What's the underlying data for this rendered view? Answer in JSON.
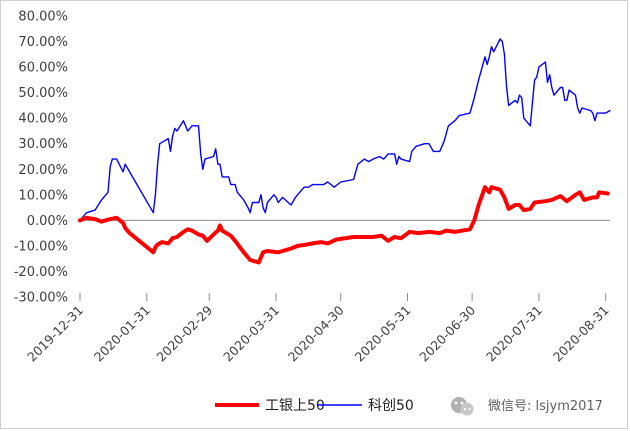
{
  "chart_data": {
    "type": "line",
    "title": "",
    "xlabel": "",
    "ylabel": "",
    "ylim": [
      -30,
      80
    ],
    "yticks": [
      80,
      70,
      60,
      50,
      40,
      30,
      20,
      10,
      0,
      -10,
      -20,
      -30
    ],
    "ytick_labels": [
      "80.00%",
      "70.00%",
      "60.00%",
      "50.00%",
      "40.00%",
      "30.00%",
      "20.00%",
      "10.00%",
      "0.00%",
      "-10.00%",
      "-20.00%",
      "-30.00%"
    ],
    "xlim": [
      "2019-12-31",
      "2020-09-02"
    ],
    "xtick_dates": [
      "2019-12-31",
      "2020-01-31",
      "2020-02-29",
      "2020-03-31",
      "2020-04-30",
      "2020-05-31",
      "2020-06-30",
      "2020-07-31",
      "2020-08-31"
    ],
    "xtick_labels": [
      "2019-12-31",
      "2020-01-31",
      "2020-02-29",
      "2020-03-31",
      "2020-04-30",
      "2020-05-31",
      "2020-06-30",
      "2020-07-31",
      "2020-08-31"
    ],
    "legend_position": "bottom",
    "grid": false,
    "series": [
      {
        "name": "工银上50",
        "color": "#ff0000",
        "points": [
          [
            "2019-12-31",
            0
          ],
          [
            "2020-01-03",
            1
          ],
          [
            "2020-01-07",
            0.5
          ],
          [
            "2020-01-10",
            -0.5
          ],
          [
            "2020-01-14",
            0.5
          ],
          [
            "2020-01-17",
            1
          ],
          [
            "2020-01-20",
            -1
          ],
          [
            "2020-01-21",
            -3
          ],
          [
            "2020-01-23",
            -5
          ],
          [
            "2020-02-03",
            -12.5
          ],
          [
            "2020-02-04",
            -10.5
          ],
          [
            "2020-02-05",
            -9.5
          ],
          [
            "2020-02-07",
            -8.5
          ],
          [
            "2020-02-10",
            -9
          ],
          [
            "2020-02-12",
            -7
          ],
          [
            "2020-02-14",
            -6.5
          ],
          [
            "2020-02-17",
            -4.5
          ],
          [
            "2020-02-19",
            -3.5
          ],
          [
            "2020-02-21",
            -4
          ],
          [
            "2020-02-24",
            -5.5
          ],
          [
            "2020-02-26",
            -6
          ],
          [
            "2020-02-28",
            -8
          ],
          [
            "2020-03-02",
            -5.5
          ],
          [
            "2020-03-04",
            -4
          ],
          [
            "2020-03-05",
            -2
          ],
          [
            "2020-03-06",
            -4
          ],
          [
            "2020-03-10",
            -6
          ],
          [
            "2020-03-12",
            -8
          ],
          [
            "2020-03-16",
            -12.5
          ],
          [
            "2020-03-19",
            -15.5
          ],
          [
            "2020-03-23",
            -16.5
          ],
          [
            "2020-03-25",
            -12.5
          ],
          [
            "2020-03-27",
            -12
          ],
          [
            "2020-04-01",
            -12.5
          ],
          [
            "2020-04-07",
            -11
          ],
          [
            "2020-04-10",
            -10
          ],
          [
            "2020-04-14",
            -9.5
          ],
          [
            "2020-04-17",
            -9
          ],
          [
            "2020-04-21",
            -8.5
          ],
          [
            "2020-04-24",
            -9
          ],
          [
            "2020-04-28",
            -7.5
          ],
          [
            "2020-05-06",
            -6.5
          ],
          [
            "2020-05-12",
            -6.5
          ],
          [
            "2020-05-15",
            -6.5
          ],
          [
            "2020-05-19",
            -6
          ],
          [
            "2020-05-22",
            -8
          ],
          [
            "2020-05-25",
            -6.5
          ],
          [
            "2020-05-28",
            -7
          ],
          [
            "2020-06-01",
            -4.5
          ],
          [
            "2020-06-05",
            -5
          ],
          [
            "2020-06-10",
            -4.5
          ],
          [
            "2020-06-15",
            -5
          ],
          [
            "2020-06-18",
            -4
          ],
          [
            "2020-06-22",
            -4.5
          ],
          [
            "2020-06-29",
            -3.5
          ],
          [
            "2020-07-01",
            0
          ],
          [
            "2020-07-03",
            6
          ],
          [
            "2020-07-06",
            13
          ],
          [
            "2020-07-08",
            11
          ],
          [
            "2020-07-09",
            13
          ],
          [
            "2020-07-13",
            12
          ],
          [
            "2020-07-15",
            9
          ],
          [
            "2020-07-17",
            4.5
          ],
          [
            "2020-07-20",
            6
          ],
          [
            "2020-07-22",
            6
          ],
          [
            "2020-07-24",
            4
          ],
          [
            "2020-07-27",
            4.5
          ],
          [
            "2020-07-29",
            7
          ],
          [
            "2020-08-03",
            7.5
          ],
          [
            "2020-08-06",
            8
          ],
          [
            "2020-08-10",
            9.5
          ],
          [
            "2020-08-13",
            7.5
          ],
          [
            "2020-08-17",
            10
          ],
          [
            "2020-08-19",
            11
          ],
          [
            "2020-08-21",
            8
          ],
          [
            "2020-08-25",
            9
          ],
          [
            "2020-08-27",
            9
          ],
          [
            "2020-08-28",
            11
          ],
          [
            "2020-09-01",
            10.5
          ]
        ]
      },
      {
        "name": "科创50",
        "color": "#0000ff",
        "points": [
          [
            "2019-12-31",
            0
          ],
          [
            "2020-01-03",
            3
          ],
          [
            "2020-01-07",
            4
          ],
          [
            "2020-01-10",
            8
          ],
          [
            "2020-01-13",
            11
          ],
          [
            "2020-01-14",
            21
          ],
          [
            "2020-01-15",
            24
          ],
          [
            "2020-01-17",
            24
          ],
          [
            "2020-01-20",
            19
          ],
          [
            "2020-01-21",
            22
          ],
          [
            "2020-02-03",
            3
          ],
          [
            "2020-02-04",
            10
          ],
          [
            "2020-02-05",
            22
          ],
          [
            "2020-02-06",
            30
          ],
          [
            "2020-02-10",
            32
          ],
          [
            "2020-02-11",
            27
          ],
          [
            "2020-02-12",
            33
          ],
          [
            "2020-02-13",
            36
          ],
          [
            "2020-02-14",
            35
          ],
          [
            "2020-02-17",
            39
          ],
          [
            "2020-02-18",
            37
          ],
          [
            "2020-02-19",
            35
          ],
          [
            "2020-02-20",
            36
          ],
          [
            "2020-02-21",
            37
          ],
          [
            "2020-02-24",
            37
          ],
          [
            "2020-02-25",
            26
          ],
          [
            "2020-02-26",
            20
          ],
          [
            "2020-02-27",
            24
          ],
          [
            "2020-03-02",
            25
          ],
          [
            "2020-03-03",
            28
          ],
          [
            "2020-03-04",
            22
          ],
          [
            "2020-03-05",
            22
          ],
          [
            "2020-03-06",
            17
          ],
          [
            "2020-03-09",
            17
          ],
          [
            "2020-03-10",
            14
          ],
          [
            "2020-03-12",
            14
          ],
          [
            "2020-03-13",
            11
          ],
          [
            "2020-03-16",
            8
          ],
          [
            "2020-03-18",
            5
          ],
          [
            "2020-03-19",
            3
          ],
          [
            "2020-03-20",
            7
          ],
          [
            "2020-03-23",
            7
          ],
          [
            "2020-03-24",
            10
          ],
          [
            "2020-03-25",
            5
          ],
          [
            "2020-03-26",
            3
          ],
          [
            "2020-03-27",
            7
          ],
          [
            "2020-03-30",
            10
          ],
          [
            "2020-03-31",
            9
          ],
          [
            "2020-04-01",
            7
          ],
          [
            "2020-04-03",
            9
          ],
          [
            "2020-04-07",
            6
          ],
          [
            "2020-04-09",
            9
          ],
          [
            "2020-04-13",
            13
          ],
          [
            "2020-04-15",
            13
          ],
          [
            "2020-04-17",
            14
          ],
          [
            "2020-04-20",
            14
          ],
          [
            "2020-04-22",
            14
          ],
          [
            "2020-04-24",
            15
          ],
          [
            "2020-04-27",
            13
          ],
          [
            "2020-04-30",
            15
          ],
          [
            "2020-05-06",
            16
          ],
          [
            "2020-05-08",
            22
          ],
          [
            "2020-05-11",
            24
          ],
          [
            "2020-05-13",
            23
          ],
          [
            "2020-05-15",
            24
          ],
          [
            "2020-05-18",
            25
          ],
          [
            "2020-05-20",
            24
          ],
          [
            "2020-05-22",
            26
          ],
          [
            "2020-05-25",
            26
          ],
          [
            "2020-05-26",
            22
          ],
          [
            "2020-05-27",
            25
          ],
          [
            "2020-05-28",
            24
          ],
          [
            "2020-06-01",
            23
          ],
          [
            "2020-06-02",
            27
          ],
          [
            "2020-06-04",
            29
          ],
          [
            "2020-06-08",
            30
          ],
          [
            "2020-06-10",
            30
          ],
          [
            "2020-06-12",
            27
          ],
          [
            "2020-06-15",
            27
          ],
          [
            "2020-06-17",
            31
          ],
          [
            "2020-06-19",
            37
          ],
          [
            "2020-06-22",
            39
          ],
          [
            "2020-06-24",
            41
          ],
          [
            "2020-06-29",
            42
          ],
          [
            "2020-07-01",
            48
          ],
          [
            "2020-07-03",
            55
          ],
          [
            "2020-07-06",
            64
          ],
          [
            "2020-07-07",
            61
          ],
          [
            "2020-07-08",
            64
          ],
          [
            "2020-07-09",
            68
          ],
          [
            "2020-07-10",
            66
          ],
          [
            "2020-07-13",
            71
          ],
          [
            "2020-07-14",
            70
          ],
          [
            "2020-07-15",
            65
          ],
          [
            "2020-07-16",
            52
          ],
          [
            "2020-07-17",
            45
          ],
          [
            "2020-07-20",
            47
          ],
          [
            "2020-07-21",
            46
          ],
          [
            "2020-07-22",
            49
          ],
          [
            "2020-07-23",
            48
          ],
          [
            "2020-07-24",
            40
          ],
          [
            "2020-07-27",
            37
          ],
          [
            "2020-07-28",
            46
          ],
          [
            "2020-07-29",
            55
          ],
          [
            "2020-07-30",
            56
          ],
          [
            "2020-07-31",
            60
          ],
          [
            "2020-08-03",
            62
          ],
          [
            "2020-08-04",
            54
          ],
          [
            "2020-08-05",
            57
          ],
          [
            "2020-08-06",
            52
          ],
          [
            "2020-08-07",
            49
          ],
          [
            "2020-08-10",
            52
          ],
          [
            "2020-08-11",
            52
          ],
          [
            "2020-08-12",
            47
          ],
          [
            "2020-08-13",
            47
          ],
          [
            "2020-08-14",
            51
          ],
          [
            "2020-08-17",
            49
          ],
          [
            "2020-08-18",
            44
          ],
          [
            "2020-08-19",
            42
          ],
          [
            "2020-08-20",
            44
          ],
          [
            "2020-08-24",
            43
          ],
          [
            "2020-08-25",
            42
          ],
          [
            "2020-08-26",
            39
          ],
          [
            "2020-08-27",
            42
          ],
          [
            "2020-08-31",
            42
          ],
          [
            "2020-09-02",
            43
          ]
        ]
      }
    ]
  },
  "watermark": {
    "icon": "wechat-icon",
    "text": "微信号: lsjym2017"
  }
}
